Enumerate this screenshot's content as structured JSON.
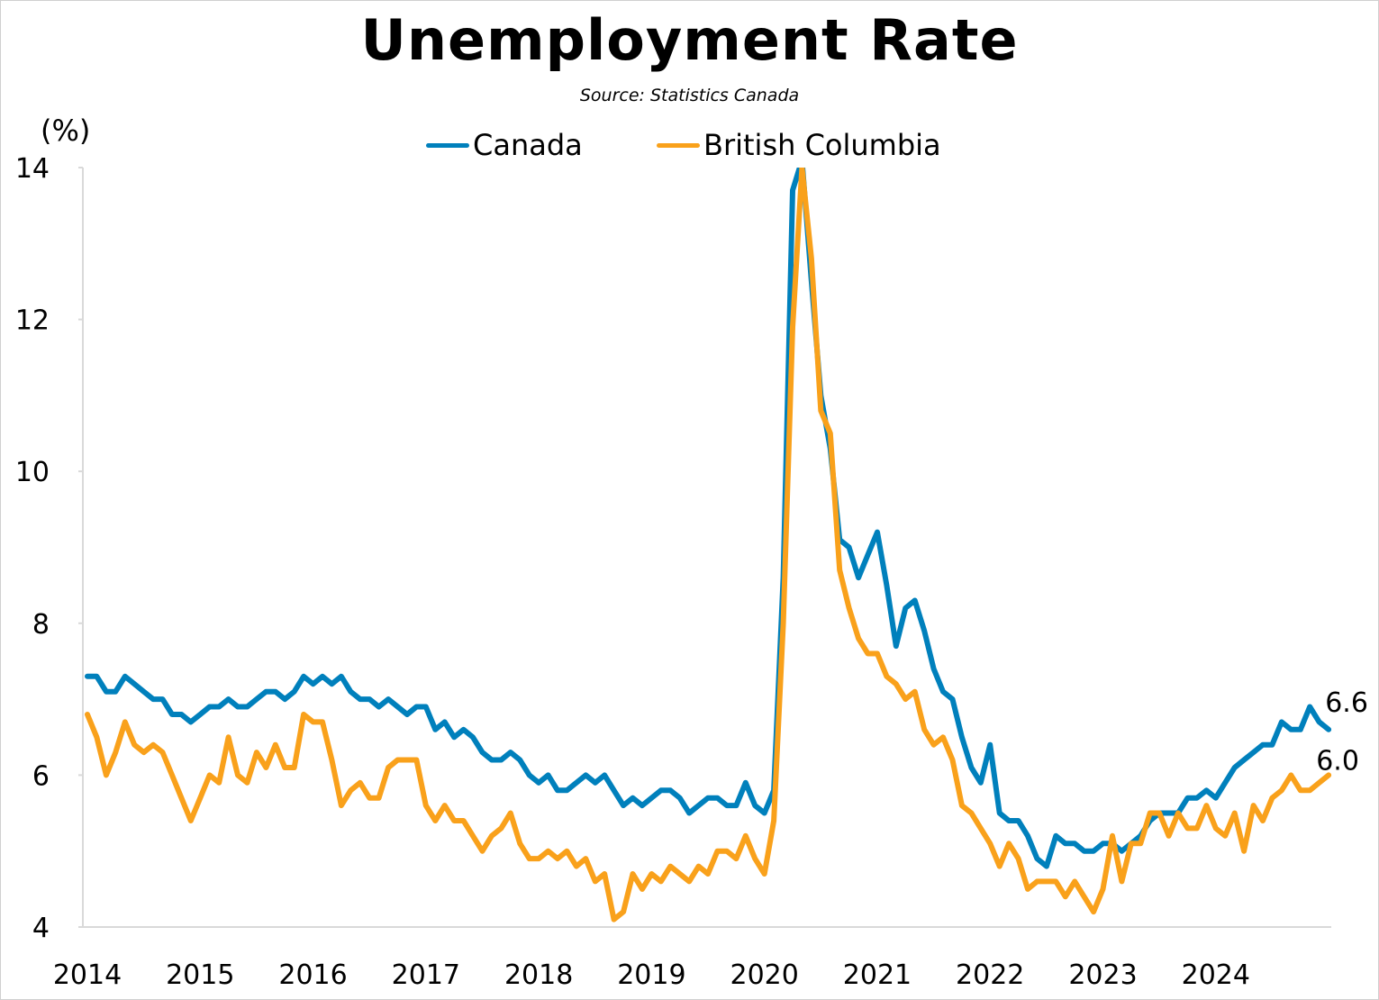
{
  "chart_data": {
    "type": "line",
    "title": "Unemployment Rate",
    "subtitle": "Source: Statistics Canada",
    "ylabel": "(%)",
    "xlabel": "",
    "ylim": [
      4,
      14
    ],
    "yticks": [
      4,
      6,
      8,
      10,
      12,
      14
    ],
    "x_start": "2014-01",
    "x_end": "2025-01",
    "frequency": "monthly",
    "xticks": [
      "2014",
      "2015",
      "2016",
      "2017",
      "2018",
      "2019",
      "2020",
      "2021",
      "2022",
      "2023",
      "2024"
    ],
    "grid": false,
    "legend": "top-center",
    "series": [
      {
        "name": "Canada",
        "color": "#0080BC",
        "end_label": "6.6",
        "values": [
          7.3,
          7.3,
          7.1,
          7.1,
          7.3,
          7.2,
          7.1,
          7.0,
          7.0,
          6.8,
          6.8,
          6.7,
          6.8,
          6.9,
          6.9,
          7.0,
          6.9,
          6.9,
          7.0,
          7.1,
          7.1,
          7.0,
          7.1,
          7.3,
          7.2,
          7.3,
          7.2,
          7.3,
          7.1,
          7.0,
          7.0,
          6.9,
          7.0,
          6.9,
          6.8,
          6.9,
          6.9,
          6.6,
          6.7,
          6.5,
          6.6,
          6.5,
          6.3,
          6.2,
          6.2,
          6.3,
          6.2,
          6.0,
          5.9,
          6.0,
          5.8,
          5.8,
          5.9,
          6.0,
          5.9,
          6.0,
          5.8,
          5.6,
          5.7,
          5.6,
          5.7,
          5.8,
          5.8,
          5.7,
          5.5,
          5.6,
          5.7,
          5.7,
          5.6,
          5.6,
          5.9,
          5.6,
          5.5,
          5.8,
          8.6,
          13.7,
          14.1,
          12.5,
          11.0,
          10.3,
          9.1,
          9.0,
          8.6,
          8.9,
          9.2,
          8.5,
          7.7,
          8.2,
          8.3,
          7.9,
          7.4,
          7.1,
          7.0,
          6.5,
          6.1,
          5.9,
          6.4,
          5.5,
          5.4,
          5.4,
          5.2,
          4.9,
          4.8,
          5.2,
          5.1,
          5.1,
          5.0,
          5.0,
          5.1,
          5.1,
          5.0,
          5.1,
          5.2,
          5.4,
          5.5,
          5.5,
          5.5,
          5.7,
          5.7,
          5.8,
          5.7,
          5.9,
          6.1,
          6.2,
          6.3,
          6.4,
          6.4,
          6.7,
          6.6,
          6.6,
          6.9,
          6.7,
          6.6
        ]
      },
      {
        "name": "British Columbia",
        "color": "#F9A11B",
        "end_label": "6.0",
        "values": [
          6.8,
          6.5,
          6.0,
          6.3,
          6.7,
          6.4,
          6.3,
          6.4,
          6.3,
          6.0,
          5.7,
          5.4,
          5.7,
          6.0,
          5.9,
          6.5,
          6.0,
          5.9,
          6.3,
          6.1,
          6.4,
          6.1,
          6.1,
          6.8,
          6.7,
          6.7,
          6.2,
          5.6,
          5.8,
          5.9,
          5.7,
          5.7,
          6.1,
          6.2,
          6.2,
          6.2,
          5.6,
          5.4,
          5.6,
          5.4,
          5.4,
          5.2,
          5.0,
          5.2,
          5.3,
          5.5,
          5.1,
          4.9,
          4.9,
          5.0,
          4.9,
          5.0,
          4.8,
          4.9,
          4.6,
          4.7,
          4.1,
          4.2,
          4.7,
          4.5,
          4.7,
          4.6,
          4.8,
          4.7,
          4.6,
          4.8,
          4.7,
          5.0,
          5.0,
          4.9,
          5.2,
          4.9,
          4.7,
          5.4,
          8.0,
          11.9,
          14.0,
          12.8,
          10.8,
          10.5,
          8.7,
          8.2,
          7.8,
          7.6,
          7.6,
          7.3,
          7.2,
          7.0,
          7.1,
          6.6,
          6.4,
          6.5,
          6.2,
          5.6,
          5.5,
          5.3,
          5.1,
          4.8,
          5.1,
          4.9,
          4.5,
          4.6,
          4.6,
          4.6,
          4.4,
          4.6,
          4.4,
          4.2,
          4.5,
          5.2,
          4.6,
          5.1,
          5.1,
          5.5,
          5.5,
          5.2,
          5.5,
          5.3,
          5.3,
          5.6,
          5.3,
          5.2,
          5.5,
          5.0,
          5.6,
          5.4,
          5.7,
          5.8,
          6.0,
          5.8,
          5.8,
          5.9,
          6.0
        ]
      }
    ]
  }
}
